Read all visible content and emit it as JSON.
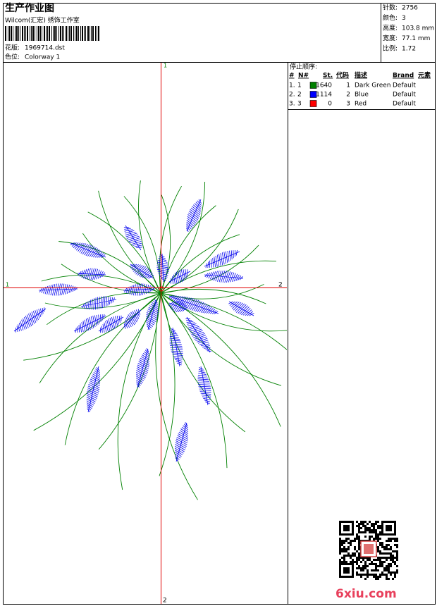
{
  "header": {
    "title": "生产作业图",
    "company": "Wilcom(汇宏) 绣饰工作室",
    "design_label": "花版:",
    "design": "1969714.dst",
    "colorway_label": "色位:",
    "colorway": "Colorway 1"
  },
  "info": [
    {
      "label": "针数:",
      "value": "2756"
    },
    {
      "label": "颜色:",
      "value": "3"
    },
    {
      "label": "高度:",
      "value": "103.8 mm"
    },
    {
      "label": "宽度:",
      "value": "77.1 mm"
    },
    {
      "label": "比例:",
      "value": "1.72"
    }
  ],
  "stop_sequence": {
    "title": "停止顺序:",
    "columns": [
      "#",
      "N#",
      "St.",
      "代码",
      "描述",
      "Brand",
      "元素"
    ],
    "rows": [
      {
        "index": "1.",
        "needle": 1,
        "color": "#008000",
        "stitches": 1640,
        "code": 1,
        "description": "Dark Green",
        "brand": "Default"
      },
      {
        "index": "2.",
        "needle": 2,
        "color": "#0000ff",
        "stitches": 1114,
        "code": 2,
        "description": "Blue",
        "brand": "Default"
      },
      {
        "index": "3.",
        "needle": 3,
        "color": "#ff0000",
        "stitches": 0,
        "code": 3,
        "description": "Red",
        "brand": "Default"
      }
    ]
  },
  "axis_labels": {
    "top": "1",
    "bottom": "2",
    "left": "1",
    "right": "2"
  },
  "watermark": "6xiu.com"
}
